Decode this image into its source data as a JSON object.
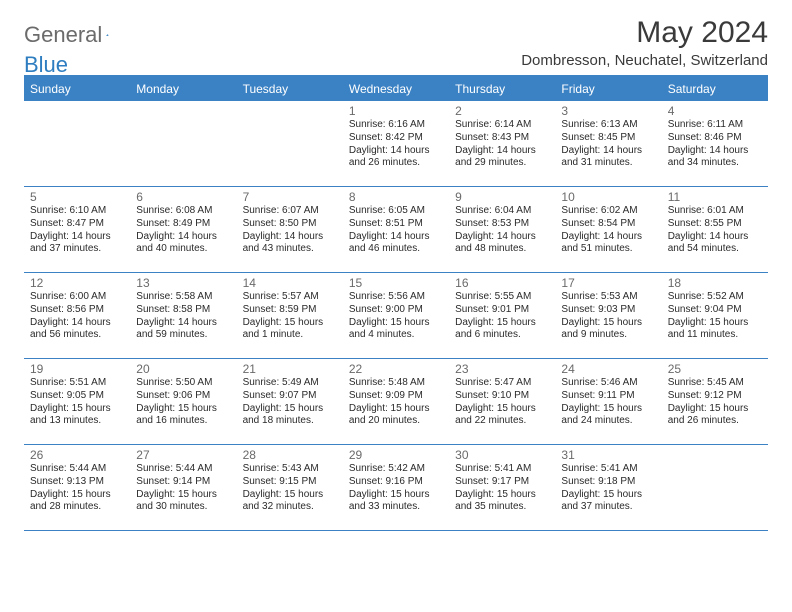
{
  "logo": {
    "word1": "General",
    "word2": "Blue"
  },
  "title": "May 2024",
  "subtitle": "Dombresson, Neuchatel, Switzerland",
  "colors": {
    "header_bg": "#3b82c4",
    "header_text": "#ffffff",
    "border": "#3b82c4",
    "daynum": "#6a6a6a",
    "body_text": "#2a2a2a",
    "logo_gray": "#6b6b6b",
    "logo_blue": "#2d7dc0",
    "page_bg": "#ffffff"
  },
  "day_names": [
    "Sunday",
    "Monday",
    "Tuesday",
    "Wednesday",
    "Thursday",
    "Friday",
    "Saturday"
  ],
  "weeks": [
    [
      null,
      null,
      null,
      {
        "n": "1",
        "sr": "6:16 AM",
        "ss": "8:42 PM",
        "dl": "14 hours and 26 minutes."
      },
      {
        "n": "2",
        "sr": "6:14 AM",
        "ss": "8:43 PM",
        "dl": "14 hours and 29 minutes."
      },
      {
        "n": "3",
        "sr": "6:13 AM",
        "ss": "8:45 PM",
        "dl": "14 hours and 31 minutes."
      },
      {
        "n": "4",
        "sr": "6:11 AM",
        "ss": "8:46 PM",
        "dl": "14 hours and 34 minutes."
      }
    ],
    [
      {
        "n": "5",
        "sr": "6:10 AM",
        "ss": "8:47 PM",
        "dl": "14 hours and 37 minutes."
      },
      {
        "n": "6",
        "sr": "6:08 AM",
        "ss": "8:49 PM",
        "dl": "14 hours and 40 minutes."
      },
      {
        "n": "7",
        "sr": "6:07 AM",
        "ss": "8:50 PM",
        "dl": "14 hours and 43 minutes."
      },
      {
        "n": "8",
        "sr": "6:05 AM",
        "ss": "8:51 PM",
        "dl": "14 hours and 46 minutes."
      },
      {
        "n": "9",
        "sr": "6:04 AM",
        "ss": "8:53 PM",
        "dl": "14 hours and 48 minutes."
      },
      {
        "n": "10",
        "sr": "6:02 AM",
        "ss": "8:54 PM",
        "dl": "14 hours and 51 minutes."
      },
      {
        "n": "11",
        "sr": "6:01 AM",
        "ss": "8:55 PM",
        "dl": "14 hours and 54 minutes."
      }
    ],
    [
      {
        "n": "12",
        "sr": "6:00 AM",
        "ss": "8:56 PM",
        "dl": "14 hours and 56 minutes."
      },
      {
        "n": "13",
        "sr": "5:58 AM",
        "ss": "8:58 PM",
        "dl": "14 hours and 59 minutes."
      },
      {
        "n": "14",
        "sr": "5:57 AM",
        "ss": "8:59 PM",
        "dl": "15 hours and 1 minute."
      },
      {
        "n": "15",
        "sr": "5:56 AM",
        "ss": "9:00 PM",
        "dl": "15 hours and 4 minutes."
      },
      {
        "n": "16",
        "sr": "5:55 AM",
        "ss": "9:01 PM",
        "dl": "15 hours and 6 minutes."
      },
      {
        "n": "17",
        "sr": "5:53 AM",
        "ss": "9:03 PM",
        "dl": "15 hours and 9 minutes."
      },
      {
        "n": "18",
        "sr": "5:52 AM",
        "ss": "9:04 PM",
        "dl": "15 hours and 11 minutes."
      }
    ],
    [
      {
        "n": "19",
        "sr": "5:51 AM",
        "ss": "9:05 PM",
        "dl": "15 hours and 13 minutes."
      },
      {
        "n": "20",
        "sr": "5:50 AM",
        "ss": "9:06 PM",
        "dl": "15 hours and 16 minutes."
      },
      {
        "n": "21",
        "sr": "5:49 AM",
        "ss": "9:07 PM",
        "dl": "15 hours and 18 minutes."
      },
      {
        "n": "22",
        "sr": "5:48 AM",
        "ss": "9:09 PM",
        "dl": "15 hours and 20 minutes."
      },
      {
        "n": "23",
        "sr": "5:47 AM",
        "ss": "9:10 PM",
        "dl": "15 hours and 22 minutes."
      },
      {
        "n": "24",
        "sr": "5:46 AM",
        "ss": "9:11 PM",
        "dl": "15 hours and 24 minutes."
      },
      {
        "n": "25",
        "sr": "5:45 AM",
        "ss": "9:12 PM",
        "dl": "15 hours and 26 minutes."
      }
    ],
    [
      {
        "n": "26",
        "sr": "5:44 AM",
        "ss": "9:13 PM",
        "dl": "15 hours and 28 minutes."
      },
      {
        "n": "27",
        "sr": "5:44 AM",
        "ss": "9:14 PM",
        "dl": "15 hours and 30 minutes."
      },
      {
        "n": "28",
        "sr": "5:43 AM",
        "ss": "9:15 PM",
        "dl": "15 hours and 32 minutes."
      },
      {
        "n": "29",
        "sr": "5:42 AM",
        "ss": "9:16 PM",
        "dl": "15 hours and 33 minutes."
      },
      {
        "n": "30",
        "sr": "5:41 AM",
        "ss": "9:17 PM",
        "dl": "15 hours and 35 minutes."
      },
      {
        "n": "31",
        "sr": "5:41 AM",
        "ss": "9:18 PM",
        "dl": "15 hours and 37 minutes."
      },
      null
    ]
  ],
  "labels": {
    "sunrise": "Sunrise:",
    "sunset": "Sunset:",
    "daylight": "Daylight:"
  }
}
